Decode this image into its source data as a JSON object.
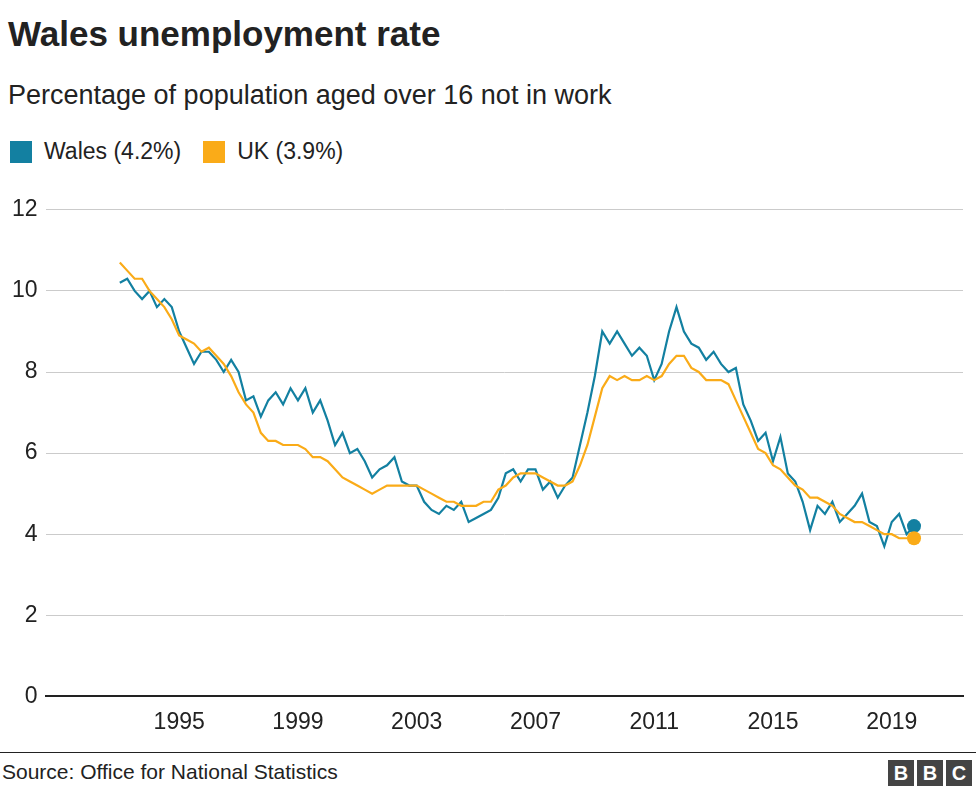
{
  "chart_data": {
    "type": "line",
    "title": "Wales unemployment rate",
    "subtitle": "Percentage of population aged over 16 not in work",
    "source": "Source: Office for National Statistics",
    "credit": "BBC",
    "x": [
      1993,
      1993.25,
      1993.5,
      1993.75,
      1994,
      1994.25,
      1994.5,
      1994.75,
      1995,
      1995.25,
      1995.5,
      1995.75,
      1996,
      1996.25,
      1996.5,
      1996.75,
      1997,
      1997.25,
      1997.5,
      1997.75,
      1998,
      1998.25,
      1998.5,
      1998.75,
      1999,
      1999.25,
      1999.5,
      1999.75,
      2000,
      2000.25,
      2000.5,
      2000.75,
      2001,
      2001.25,
      2001.5,
      2001.75,
      2002,
      2002.25,
      2002.5,
      2002.75,
      2003,
      2003.25,
      2003.5,
      2003.75,
      2004,
      2004.25,
      2004.5,
      2004.75,
      2005,
      2005.25,
      2005.5,
      2005.75,
      2006,
      2006.25,
      2006.5,
      2006.75,
      2007,
      2007.25,
      2007.5,
      2007.75,
      2008,
      2008.25,
      2008.5,
      2008.75,
      2009,
      2009.25,
      2009.5,
      2009.75,
      2010,
      2010.25,
      2010.5,
      2010.75,
      2011,
      2011.25,
      2011.5,
      2011.75,
      2012,
      2012.25,
      2012.5,
      2012.75,
      2013,
      2013.25,
      2013.5,
      2013.75,
      2014,
      2014.25,
      2014.5,
      2014.75,
      2015,
      2015.25,
      2015.5,
      2015.75,
      2016,
      2016.25,
      2016.5,
      2016.75,
      2017,
      2017.25,
      2017.5,
      2017.75,
      2018,
      2018.25,
      2018.5,
      2018.75,
      2019,
      2019.25,
      2019.5,
      2019.75
    ],
    "series": [
      {
        "name": "Wales (4.2%)",
        "color": "#1380a1",
        "values": [
          10.2,
          10.3,
          10.0,
          9.8,
          10.0,
          9.6,
          9.8,
          9.6,
          9.0,
          8.6,
          8.2,
          8.5,
          8.5,
          8.3,
          8.0,
          8.3,
          8.0,
          7.3,
          7.4,
          6.9,
          7.3,
          7.5,
          7.2,
          7.6,
          7.3,
          7.6,
          7.0,
          7.3,
          6.8,
          6.2,
          6.5,
          6.0,
          6.1,
          5.8,
          5.4,
          5.6,
          5.7,
          5.9,
          5.3,
          5.2,
          5.2,
          4.8,
          4.6,
          4.5,
          4.7,
          4.6,
          4.8,
          4.3,
          4.4,
          4.5,
          4.6,
          4.9,
          5.5,
          5.6,
          5.3,
          5.6,
          5.6,
          5.1,
          5.3,
          4.9,
          5.2,
          5.4,
          6.2,
          7.0,
          7.9,
          9.0,
          8.7,
          9.0,
          8.7,
          8.4,
          8.6,
          8.4,
          7.8,
          8.2,
          9.0,
          9.6,
          9.0,
          8.7,
          8.6,
          8.3,
          8.5,
          8.2,
          8.0,
          8.1,
          7.2,
          6.8,
          6.3,
          6.5,
          5.8,
          6.4,
          5.5,
          5.3,
          4.8,
          4.1,
          4.7,
          4.5,
          4.8,
          4.3,
          4.5,
          4.7,
          5.0,
          4.3,
          4.2,
          3.7,
          4.3,
          4.5,
          4.0,
          4.2
        ]
      },
      {
        "name": "UK (3.9%)",
        "color": "#faab18",
        "values": [
          10.7,
          10.5,
          10.3,
          10.3,
          10.0,
          9.8,
          9.6,
          9.3,
          8.9,
          8.8,
          8.7,
          8.5,
          8.6,
          8.4,
          8.2,
          7.9,
          7.5,
          7.2,
          7.0,
          6.5,
          6.3,
          6.3,
          6.2,
          6.2,
          6.2,
          6.1,
          5.9,
          5.9,
          5.8,
          5.6,
          5.4,
          5.3,
          5.2,
          5.1,
          5.0,
          5.1,
          5.2,
          5.2,
          5.2,
          5.2,
          5.2,
          5.1,
          5.0,
          4.9,
          4.8,
          4.8,
          4.7,
          4.7,
          4.7,
          4.8,
          4.8,
          5.1,
          5.2,
          5.4,
          5.5,
          5.5,
          5.5,
          5.4,
          5.3,
          5.2,
          5.2,
          5.3,
          5.7,
          6.2,
          6.9,
          7.6,
          7.9,
          7.8,
          7.9,
          7.8,
          7.8,
          7.9,
          7.8,
          7.9,
          8.2,
          8.4,
          8.4,
          8.1,
          8.0,
          7.8,
          7.8,
          7.8,
          7.7,
          7.3,
          6.9,
          6.5,
          6.1,
          6.0,
          5.7,
          5.6,
          5.4,
          5.2,
          5.1,
          4.9,
          4.9,
          4.8,
          4.7,
          4.5,
          4.4,
          4.3,
          4.3,
          4.2,
          4.1,
          4.0,
          4.0,
          3.9,
          3.9,
          3.9
        ]
      }
    ],
    "xlim": [
      1990.5,
      2021.4
    ],
    "xticks": [
      1995,
      1999,
      2003,
      2007,
      2011,
      2015,
      2019
    ],
    "ylim": [
      0,
      12
    ],
    "yticks": [
      0,
      2,
      4,
      6,
      8,
      10,
      12
    ],
    "grid": true,
    "legend": "top-left"
  }
}
